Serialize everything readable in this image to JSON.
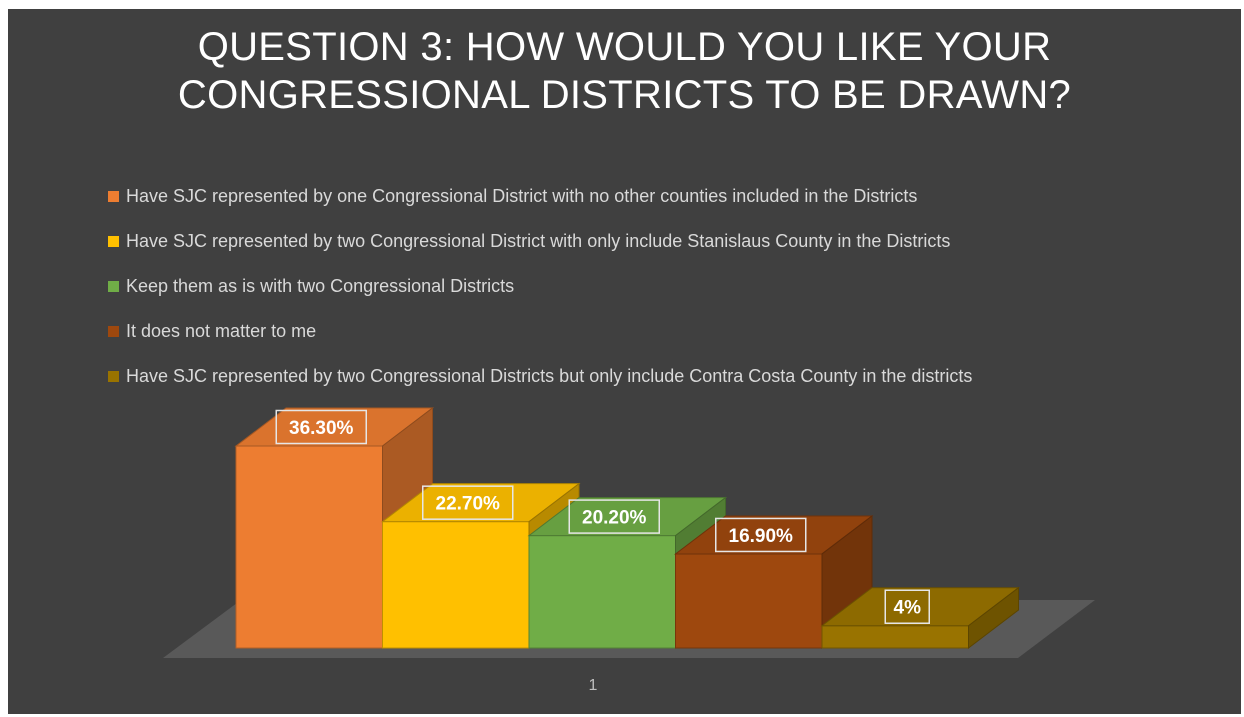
{
  "chart_data": {
    "type": "bar",
    "title_lines": [
      "QUESTION 3:  HOW WOULD YOU LIKE YOUR",
      "CONGRESSIONAL DISTRICTS TO BE DRAWN?"
    ],
    "categories": [
      "1"
    ],
    "ylim": [
      0,
      40
    ],
    "legend_position": "top",
    "grid": false,
    "series": [
      {
        "name": "Have SJC represented by one Congressional District with no other counties included in the Districts",
        "value": 36.3,
        "label": "36.30%",
        "color": "#ED7D31"
      },
      {
        "name": "Have SJC represented by two Congressional District with only include Stanislaus County in the Districts",
        "value": 22.7,
        "label": "22.70%",
        "color": "#FFC000"
      },
      {
        "name": "Keep them as is with two Congressional Districts",
        "value": 20.2,
        "label": "20.20%",
        "color": "#70AD47"
      },
      {
        "name": "It does not matter to me",
        "value": 16.9,
        "label": "16.90%",
        "color": "#9E480E"
      },
      {
        "name": "Have SJC represented by two Congressional Districts but only include Contra Costa County in the districts",
        "value": 4,
        "label": "4%",
        "color": "#997300"
      }
    ]
  }
}
